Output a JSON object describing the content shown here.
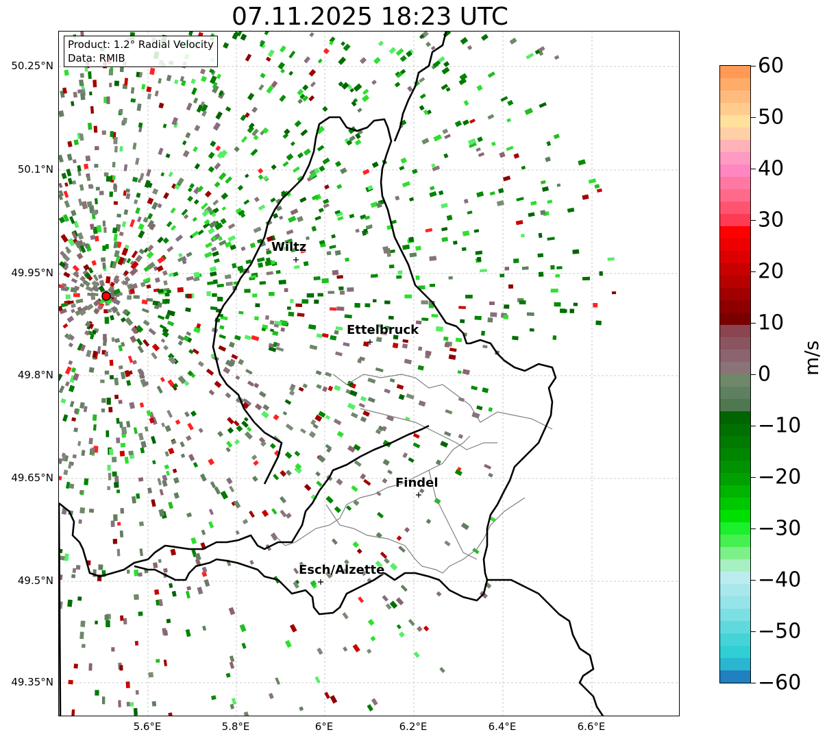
{
  "title": "07.11.2025 18:23 UTC",
  "info_box": {
    "product": "Product: 1.2° Radial Velocity",
    "data_source": "Data: RMIB"
  },
  "lat_ticks": [
    "50.25°N",
    "50.1°N",
    "49.95°N",
    "49.8°N",
    "49.65°N",
    "49.5°N",
    "49.35°N"
  ],
  "lon_ticks": [
    "5.6°E",
    "5.8°E",
    "6°E",
    "6.2°E",
    "6.4°E",
    "6.6°E"
  ],
  "cities": [
    {
      "name": "Wiltz"
    },
    {
      "name": "Ettelbruck"
    },
    {
      "name": "Findel"
    },
    {
      "name": "Esch/Alzette"
    }
  ],
  "radar_site_color": "#ff0000",
  "colorbar": {
    "unit": "m/s",
    "min": -60,
    "max": 60,
    "ticks": [
      "60",
      "50",
      "40",
      "30",
      "20",
      "10",
      "0",
      "−10",
      "−20",
      "−30",
      "−40",
      "−50",
      "−60"
    ],
    "colors_top_to_bottom": [
      "#ff9955",
      "#ffab6a",
      "#ffbb7e",
      "#ffcc8e",
      "#ffe09d",
      "#ffcfa5",
      "#ffb3b8",
      "#ff9ac4",
      "#ff86c0",
      "#ff78a4",
      "#ff6a8a",
      "#ff5470",
      "#ff3a55",
      "#ff0000",
      "#ee0000",
      "#dd0000",
      "#c90000",
      "#b70000",
      "#a20000",
      "#8e0000",
      "#7a0000",
      "#8b4550",
      "#8b5560",
      "#8b6470",
      "#8a7478",
      "#6e8868",
      "#5f8060",
      "#507850",
      "#006400",
      "#007000",
      "#007b00",
      "#008500",
      "#009200",
      "#00a000",
      "#00b400",
      "#00c800",
      "#00e000",
      "#1cf02c",
      "#46f050",
      "#7ef08a",
      "#a6f0c2",
      "#bcecef",
      "#a8e8ec",
      "#94e4e8",
      "#7cdfe4",
      "#60d9dd",
      "#44d4d8",
      "#30cfd6",
      "#2ab6d0",
      "#2080c0"
    ]
  }
}
